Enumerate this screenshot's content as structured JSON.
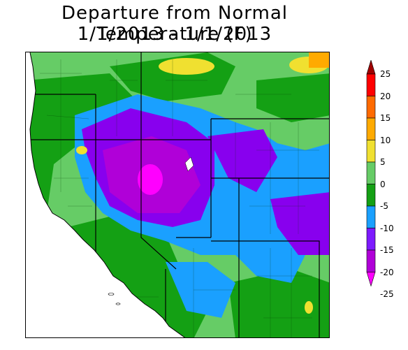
{
  "title": "Departure from Normal Temperature (F)",
  "subtitle": "1/1/2013 - 1/1/2013",
  "legend": {
    "ticks": [
      "25",
      "20",
      "15",
      "10",
      "5",
      "0",
      "-5",
      "-10",
      "-15",
      "-20",
      "-25"
    ],
    "colors": {
      "above_20": "#a00000",
      "15_to_20": "#ff0000",
      "10_to_15": "#ff6a00",
      "5_to_10": "#ffaa00",
      "0_to_5": "#f0e030",
      "m5_to_0": "#66cc66",
      "m10_to_m5": "#14a014",
      "m15_to_m10": "#1aa0ff",
      "m20_to_m15": "#7d1aff",
      "m25_to_m20": "#b000d8",
      "below_m25": "#ff00ff"
    }
  },
  "map_colors": {
    "ocean": "#ffffff",
    "light_green": "#66cc66",
    "green": "#14a014",
    "blue": "#1aa0ff",
    "purple": "#8800ee",
    "violet": "#b000d8",
    "magenta": "#ff00ff",
    "yellow": "#f0e030",
    "orange": "#ffaa00"
  }
}
